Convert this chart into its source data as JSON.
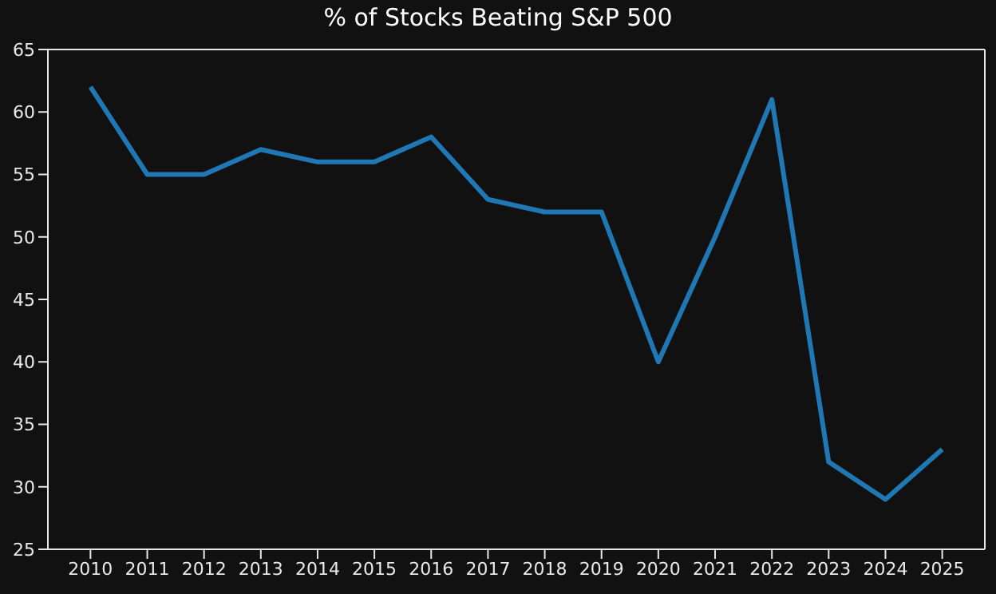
{
  "chart_data": {
    "type": "line",
    "title": "% of Stocks Beating S&P 500",
    "categories": [
      "2010",
      "2011",
      "2012",
      "2013",
      "2014",
      "2015",
      "2016",
      "2017",
      "2018",
      "2019",
      "2020",
      "2021",
      "2022",
      "2023",
      "2024",
      "2025"
    ],
    "series": [
      {
        "color": "#1f77b4",
        "values": [
          62,
          55,
          55,
          57,
          56,
          56,
          58,
          53,
          52,
          52,
          40,
          50,
          61,
          32,
          29,
          33
        ]
      }
    ],
    "ylim": [
      25,
      65
    ],
    "yticks": [
      25,
      30,
      35,
      40,
      45,
      50,
      55,
      60,
      65
    ],
    "grid": false,
    "legend": false,
    "marker": "none",
    "line_style": "solid"
  }
}
